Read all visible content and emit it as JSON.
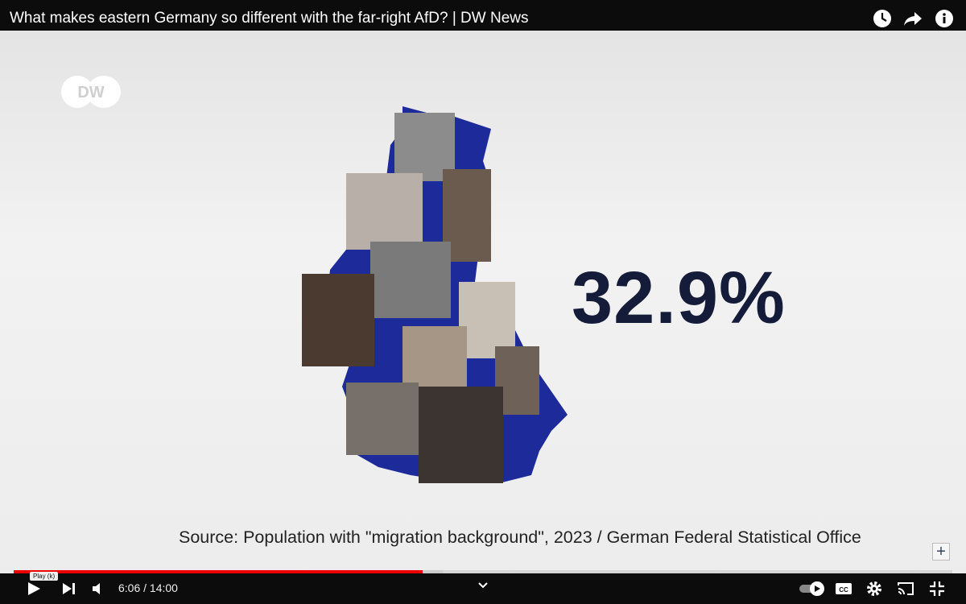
{
  "player": {
    "title": "What makes eastern Germany so different with the far-right AfD? | DW News",
    "tooltip": "Play (k)",
    "time": "6:06 / 14:00"
  },
  "video": {
    "logo": "DW",
    "stat": "32.9%",
    "source": "Source: Population with \"migration background\", 2023 / German Federal Statistical Office"
  }
}
